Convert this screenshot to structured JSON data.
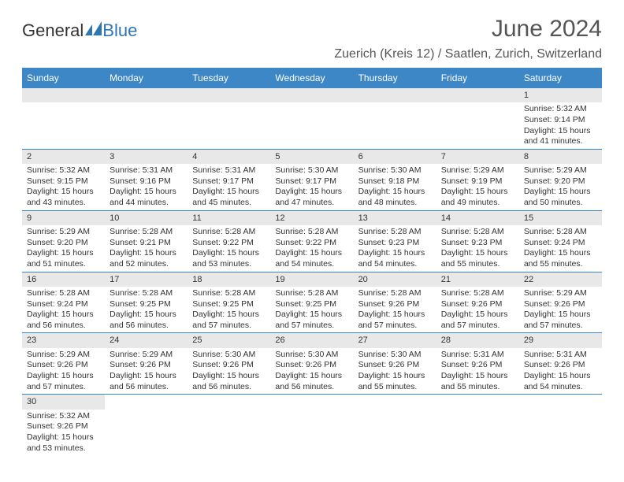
{
  "logo": {
    "text1": "General",
    "text2": "Blue"
  },
  "title": "June 2024",
  "location": "Zuerich (Kreis 12) / Saatlen, Zurich, Switzerland",
  "day_headers": [
    "Sunday",
    "Monday",
    "Tuesday",
    "Wednesday",
    "Thursday",
    "Friday",
    "Saturday"
  ],
  "colors": {
    "header_bg": "#3d87c7",
    "header_text": "#ffffff",
    "daynum_bg": "#e8e8e8",
    "border": "#3d87c7",
    "logo_blue": "#2e75b6",
    "text": "#333333"
  },
  "weeks": [
    [
      {
        "blank": true
      },
      {
        "blank": true
      },
      {
        "blank": true
      },
      {
        "blank": true
      },
      {
        "blank": true
      },
      {
        "blank": true
      },
      {
        "n": "1",
        "sunrise": "5:32 AM",
        "sunset": "9:14 PM",
        "daylight": "15 hours and 41 minutes."
      }
    ],
    [
      {
        "n": "2",
        "sunrise": "5:32 AM",
        "sunset": "9:15 PM",
        "daylight": "15 hours and 43 minutes."
      },
      {
        "n": "3",
        "sunrise": "5:31 AM",
        "sunset": "9:16 PM",
        "daylight": "15 hours and 44 minutes."
      },
      {
        "n": "4",
        "sunrise": "5:31 AM",
        "sunset": "9:17 PM",
        "daylight": "15 hours and 45 minutes."
      },
      {
        "n": "5",
        "sunrise": "5:30 AM",
        "sunset": "9:17 PM",
        "daylight": "15 hours and 47 minutes."
      },
      {
        "n": "6",
        "sunrise": "5:30 AM",
        "sunset": "9:18 PM",
        "daylight": "15 hours and 48 minutes."
      },
      {
        "n": "7",
        "sunrise": "5:29 AM",
        "sunset": "9:19 PM",
        "daylight": "15 hours and 49 minutes."
      },
      {
        "n": "8",
        "sunrise": "5:29 AM",
        "sunset": "9:20 PM",
        "daylight": "15 hours and 50 minutes."
      }
    ],
    [
      {
        "n": "9",
        "sunrise": "5:29 AM",
        "sunset": "9:20 PM",
        "daylight": "15 hours and 51 minutes."
      },
      {
        "n": "10",
        "sunrise": "5:28 AM",
        "sunset": "9:21 PM",
        "daylight": "15 hours and 52 minutes."
      },
      {
        "n": "11",
        "sunrise": "5:28 AM",
        "sunset": "9:22 PM",
        "daylight": "15 hours and 53 minutes."
      },
      {
        "n": "12",
        "sunrise": "5:28 AM",
        "sunset": "9:22 PM",
        "daylight": "15 hours and 54 minutes."
      },
      {
        "n": "13",
        "sunrise": "5:28 AM",
        "sunset": "9:23 PM",
        "daylight": "15 hours and 54 minutes."
      },
      {
        "n": "14",
        "sunrise": "5:28 AM",
        "sunset": "9:23 PM",
        "daylight": "15 hours and 55 minutes."
      },
      {
        "n": "15",
        "sunrise": "5:28 AM",
        "sunset": "9:24 PM",
        "daylight": "15 hours and 55 minutes."
      }
    ],
    [
      {
        "n": "16",
        "sunrise": "5:28 AM",
        "sunset": "9:24 PM",
        "daylight": "15 hours and 56 minutes."
      },
      {
        "n": "17",
        "sunrise": "5:28 AM",
        "sunset": "9:25 PM",
        "daylight": "15 hours and 56 minutes."
      },
      {
        "n": "18",
        "sunrise": "5:28 AM",
        "sunset": "9:25 PM",
        "daylight": "15 hours and 57 minutes."
      },
      {
        "n": "19",
        "sunrise": "5:28 AM",
        "sunset": "9:25 PM",
        "daylight": "15 hours and 57 minutes."
      },
      {
        "n": "20",
        "sunrise": "5:28 AM",
        "sunset": "9:26 PM",
        "daylight": "15 hours and 57 minutes."
      },
      {
        "n": "21",
        "sunrise": "5:28 AM",
        "sunset": "9:26 PM",
        "daylight": "15 hours and 57 minutes."
      },
      {
        "n": "22",
        "sunrise": "5:29 AM",
        "sunset": "9:26 PM",
        "daylight": "15 hours and 57 minutes."
      }
    ],
    [
      {
        "n": "23",
        "sunrise": "5:29 AM",
        "sunset": "9:26 PM",
        "daylight": "15 hours and 57 minutes."
      },
      {
        "n": "24",
        "sunrise": "5:29 AM",
        "sunset": "9:26 PM",
        "daylight": "15 hours and 56 minutes."
      },
      {
        "n": "25",
        "sunrise": "5:30 AM",
        "sunset": "9:26 PM",
        "daylight": "15 hours and 56 minutes."
      },
      {
        "n": "26",
        "sunrise": "5:30 AM",
        "sunset": "9:26 PM",
        "daylight": "15 hours and 56 minutes."
      },
      {
        "n": "27",
        "sunrise": "5:30 AM",
        "sunset": "9:26 PM",
        "daylight": "15 hours and 55 minutes."
      },
      {
        "n": "28",
        "sunrise": "5:31 AM",
        "sunset": "9:26 PM",
        "daylight": "15 hours and 55 minutes."
      },
      {
        "n": "29",
        "sunrise": "5:31 AM",
        "sunset": "9:26 PM",
        "daylight": "15 hours and 54 minutes."
      }
    ],
    [
      {
        "n": "30",
        "sunrise": "5:32 AM",
        "sunset": "9:26 PM",
        "daylight": "15 hours and 53 minutes."
      },
      {
        "trailing": true
      },
      {
        "trailing": true
      },
      {
        "trailing": true
      },
      {
        "trailing": true
      },
      {
        "trailing": true
      },
      {
        "trailing": true
      }
    ]
  ],
  "labels": {
    "sunrise": "Sunrise: ",
    "sunset": "Sunset: ",
    "daylight": "Daylight: "
  }
}
